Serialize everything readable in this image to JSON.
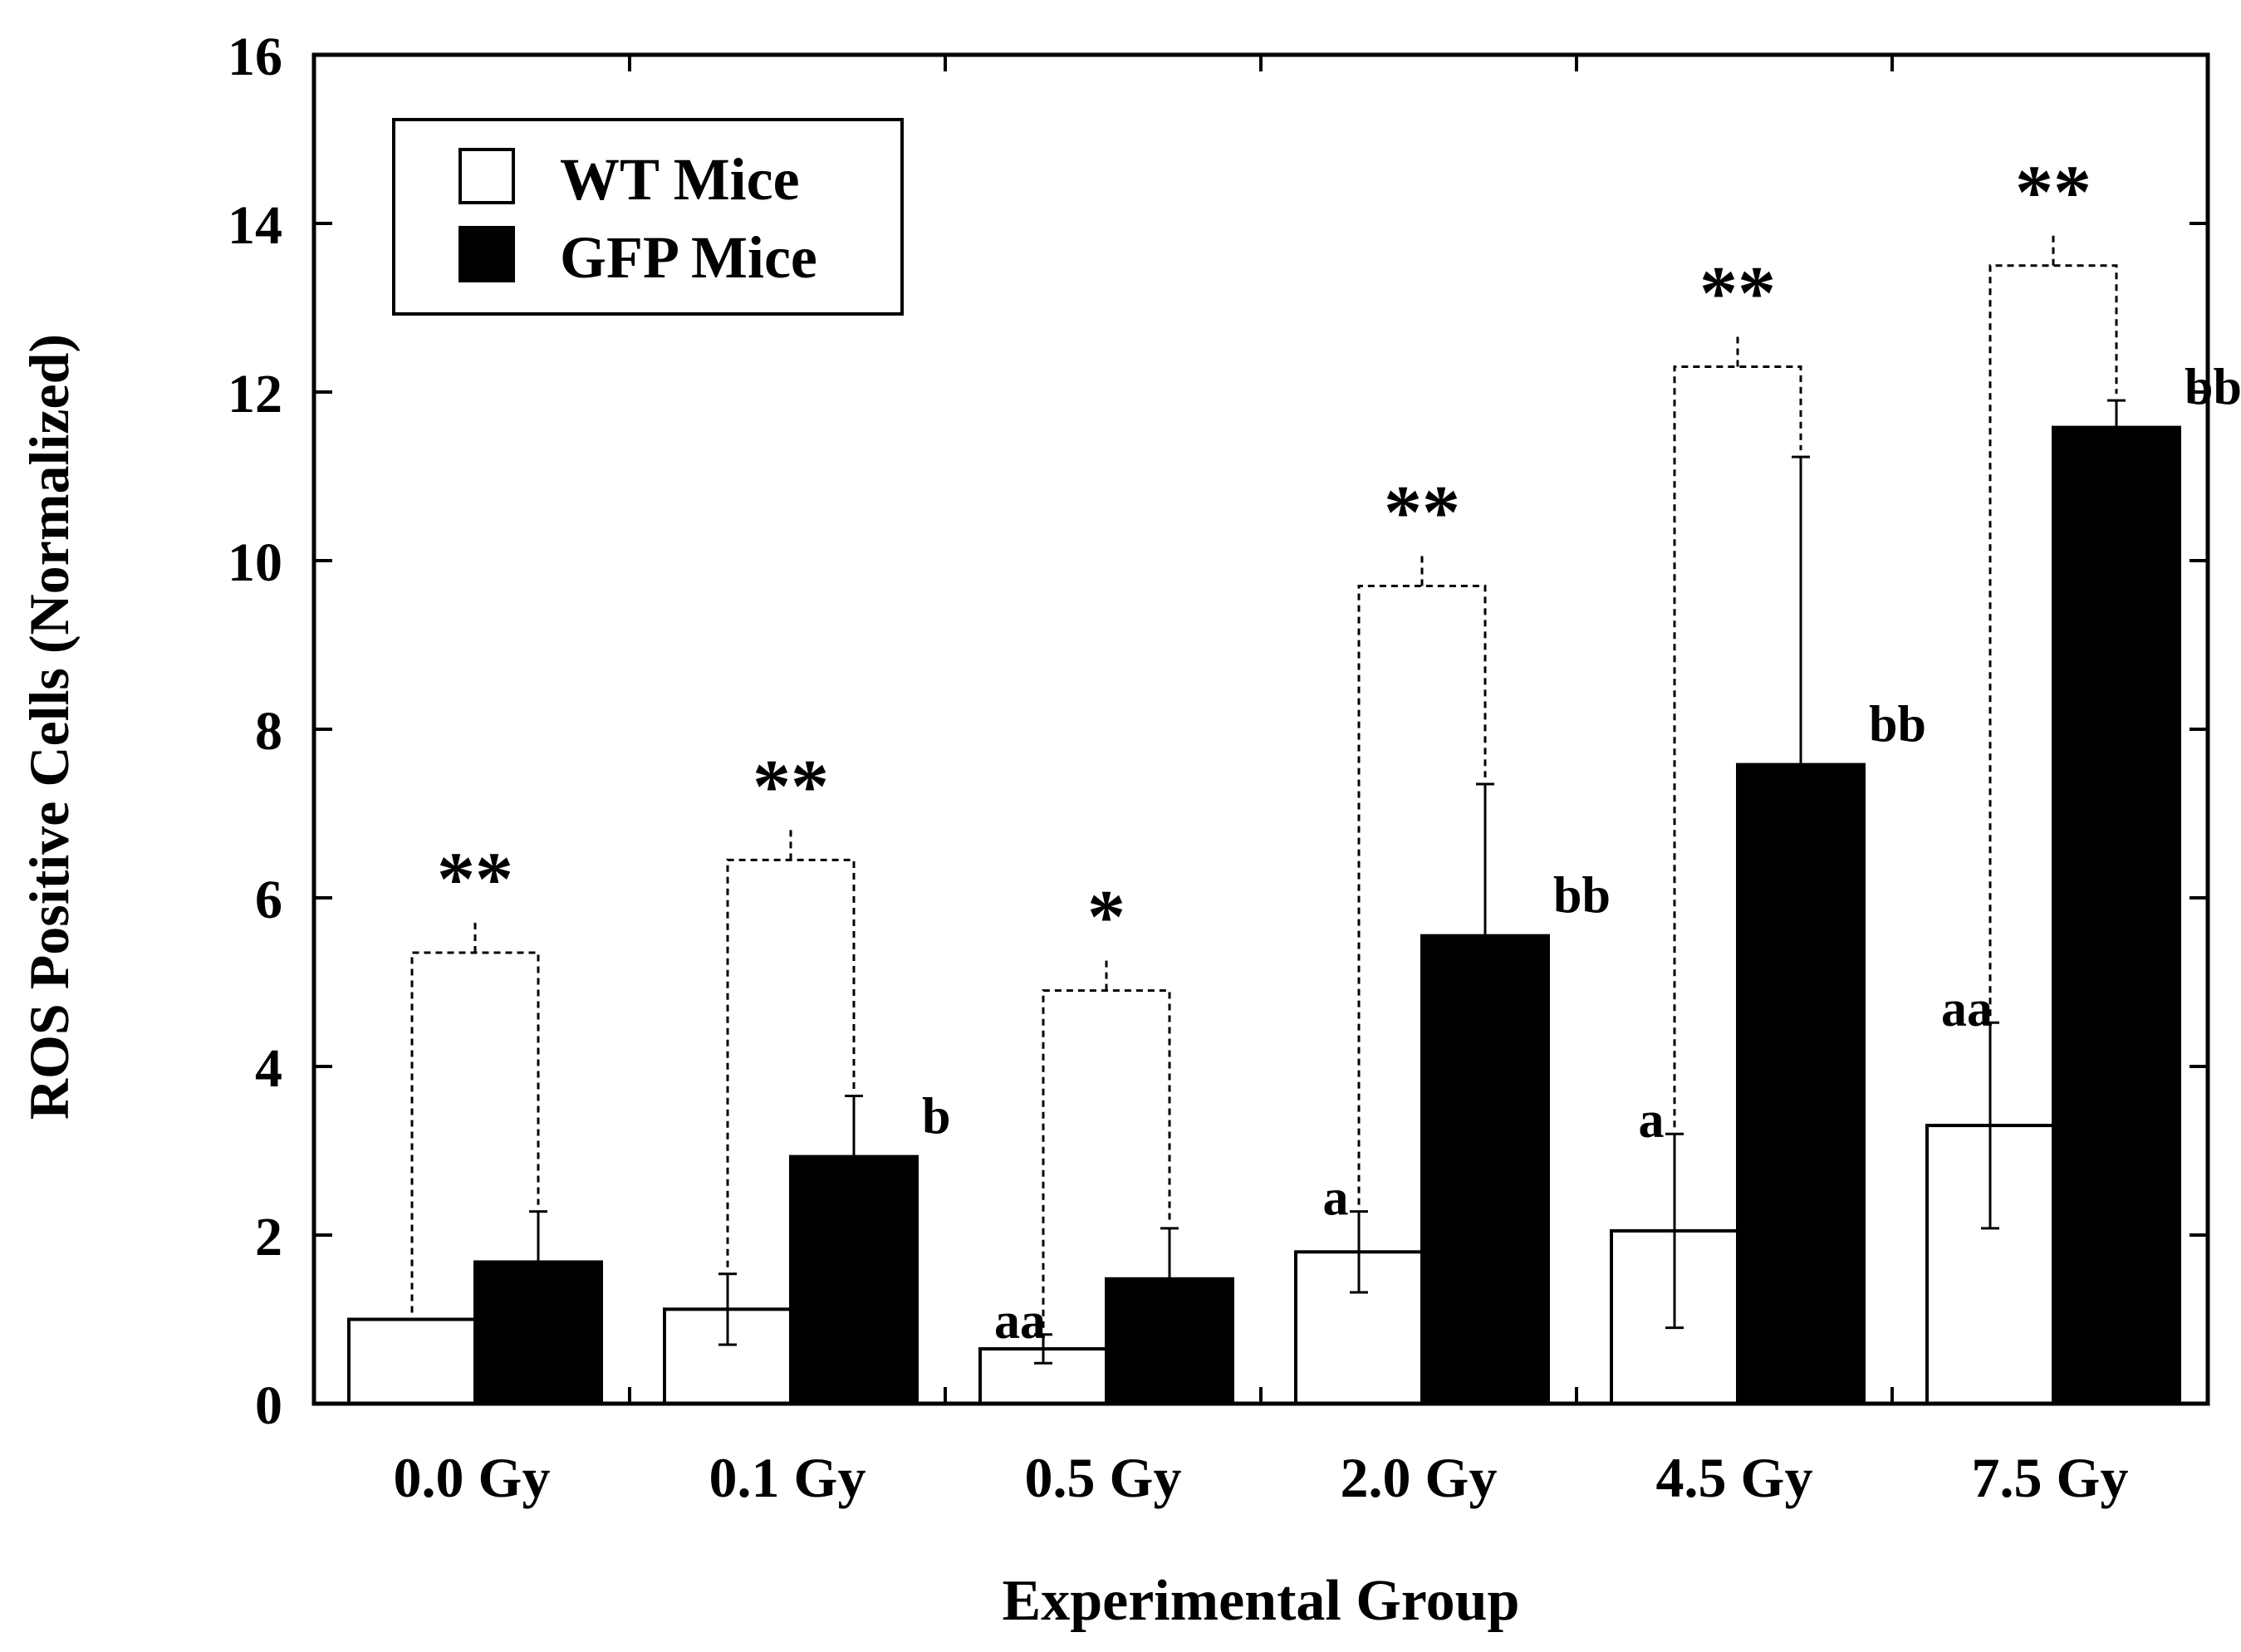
{
  "chart_data": {
    "type": "bar",
    "xlabel": "Experimental Group",
    "ylabel": "ROS Positive Cells (Normalized)",
    "ylim": [
      0,
      16
    ],
    "yticks": [
      0,
      2,
      4,
      6,
      8,
      10,
      12,
      14,
      16
    ],
    "categories": [
      "0.0 Gy",
      "0.1 Gy",
      "0.5 Gy",
      "2.0 Gy",
      "4.5 Gy",
      "7.5 Gy"
    ],
    "legend_position": "top-left",
    "colors": {
      "WT Mice": "#ffffff",
      "GFP Mice": "#000000",
      "axis": "#000000"
    },
    "series": [
      {
        "name": "WT Mice",
        "values": [
          1.0,
          1.12,
          0.65,
          1.8,
          2.05,
          3.3
        ],
        "errors": [
          0.0,
          0.42,
          0.17,
          0.48,
          1.15,
          1.22
        ],
        "labels": [
          "",
          "",
          "aa",
          "a",
          "a",
          "aa"
        ]
      },
      {
        "name": "GFP Mice",
        "values": [
          1.68,
          2.93,
          1.48,
          5.55,
          7.58,
          11.58
        ],
        "errors": [
          0.6,
          0.72,
          0.6,
          1.8,
          3.65,
          0.32
        ],
        "labels": [
          "",
          "b",
          "",
          "bb",
          "bb",
          "bb"
        ]
      }
    ],
    "significance": {
      "labels": [
        "**",
        "**",
        "*",
        "**",
        "**",
        "**"
      ],
      "bracket_values": [
        5.35,
        6.45,
        4.9,
        9.7,
        12.3,
        13.5
      ]
    }
  }
}
